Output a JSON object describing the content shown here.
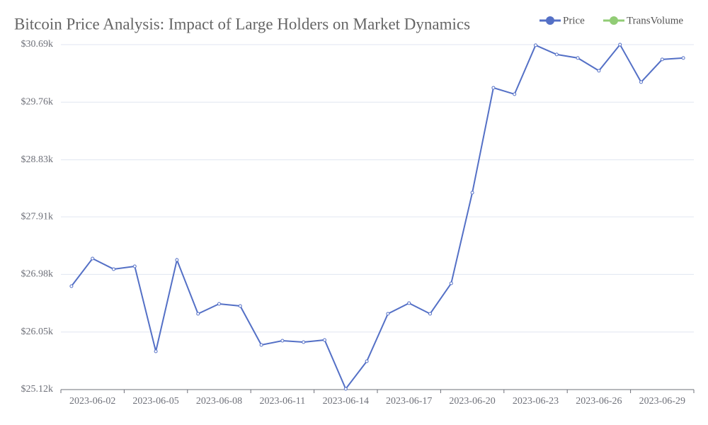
{
  "chart_data": {
    "type": "line",
    "title": "Bitcoin Price Analysis: Impact of Large Holders on Market Dynamics",
    "x": [
      null,
      "2023-06-02",
      null,
      null,
      "2023-06-05",
      null,
      null,
      "2023-06-08",
      null,
      null,
      "2023-06-11",
      null,
      null,
      "2023-06-14",
      null,
      null,
      "2023-06-17",
      null,
      null,
      "2023-06-20",
      null,
      null,
      "2023-06-23",
      null,
      null,
      "2023-06-26",
      null,
      null,
      "2023-06-29",
      null
    ],
    "series": [
      {
        "name": "Price",
        "color": "#5470c6",
        "values": [
          26790,
          27236,
          27065,
          27110,
          25738,
          27213,
          26344,
          26504,
          26470,
          25841,
          25909,
          25886,
          25921,
          25131,
          25578,
          26344,
          26516,
          26344,
          26836,
          28300,
          29993,
          29890,
          30680,
          30531,
          30474,
          30268,
          30690,
          30085,
          30451,
          30474
        ]
      },
      {
        "name": "TransVolume",
        "color": "#91cc75",
        "values": [
          null,
          null,
          null,
          null,
          null,
          null,
          null,
          null,
          null,
          null,
          null,
          null,
          null,
          null,
          null,
          null,
          null,
          null,
          null,
          null,
          null,
          null,
          null,
          null,
          null,
          null,
          null,
          null,
          null,
          null
        ]
      }
    ],
    "ylim": [
      25120,
      30690
    ],
    "yticks": [
      {
        "value": 25120,
        "label": "$25.12k"
      },
      {
        "value": 26050,
        "label": "$26.05k"
      },
      {
        "value": 26980,
        "label": "$26.98k"
      },
      {
        "value": 27910,
        "label": "$27.91k"
      },
      {
        "value": 28830,
        "label": "$28.83k"
      },
      {
        "value": 29760,
        "label": "$29.76k"
      },
      {
        "value": 30690,
        "label": "$30.69k"
      }
    ],
    "grid": true
  }
}
